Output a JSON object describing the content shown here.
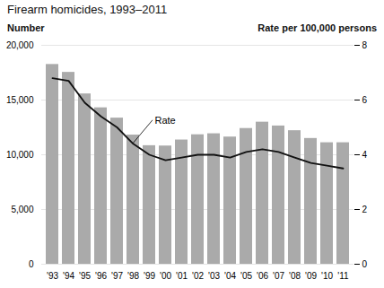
{
  "chart_data": {
    "type": "bar",
    "title": "Firearm homicides, 1993–2011",
    "ylabel": "Number",
    "y2label": "Rate per 100,000 persons",
    "categories": [
      "'93",
      "'94",
      "'95",
      "'96",
      "'97",
      "'98",
      "'99",
      "'00",
      "'01",
      "'02",
      "'03",
      "'04",
      "'05",
      "'06",
      "'07",
      "'08",
      "'09",
      "'10",
      "'11"
    ],
    "series": [
      {
        "type": "bar",
        "color": "#aaaaaa",
        "values": [
          18250,
          17530,
          15560,
          14290,
          13350,
          11800,
          10830,
          10800,
          11350,
          11830,
          11920,
          11620,
          12400,
          12980,
          12630,
          12200,
          11490,
          11100,
          11100
        ]
      },
      {
        "type": "line",
        "color": "#111111",
        "axis": "y2",
        "values": [
          6.8,
          6.7,
          5.9,
          5.4,
          5.0,
          4.4,
          4.0,
          3.8,
          3.9,
          4.0,
          4.0,
          3.9,
          4.1,
          4.2,
          4.1,
          3.9,
          3.7,
          3.6,
          3.5
        ]
      }
    ],
    "ylim": [
      0,
      20000
    ],
    "yticks": [
      0,
      {
        "value": 5000,
        "label": "5,000"
      },
      {
        "value": 10000,
        "label": "10,000"
      },
      {
        "value": 15000,
        "label": "15,000"
      },
      {
        "value": 20000,
        "label": "20,000"
      }
    ],
    "y2lim": [
      0,
      8
    ],
    "y2ticks": [
      0,
      2,
      4,
      6,
      8
    ],
    "grid": true,
    "annotations": [
      {
        "text": "Rate",
        "x": "'98",
        "y": 4.4,
        "axis": "y2"
      }
    ]
  }
}
